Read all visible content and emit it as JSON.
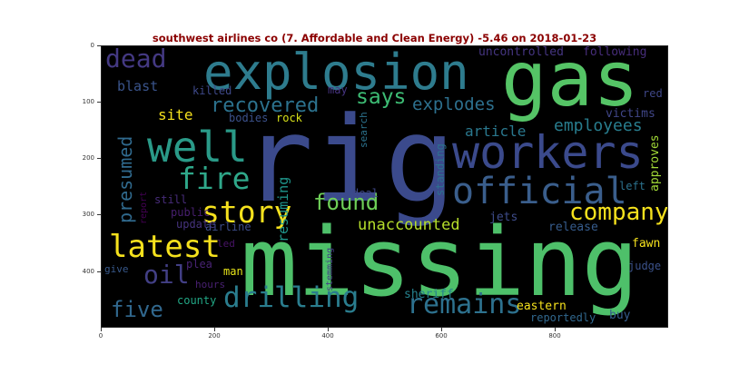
{
  "chart_data": {
    "type": "wordcloud",
    "title": "southwest airlines co (7. Affordable and Clean Energy) -5.46 on 2018-01-23",
    "x_ticks": [
      "0",
      "200",
      "400",
      "600",
      "800"
    ],
    "y_ticks": [
      "0",
      "100",
      "200",
      "300",
      "400"
    ],
    "xlim": [
      0,
      1000
    ],
    "ylim": [
      500,
      0
    ],
    "background": "#000000",
    "words": [
      {
        "text": "rig",
        "color": "#3b4a8c",
        "weight": 1.0
      },
      {
        "text": "missing",
        "color": "#4ec06a",
        "weight": 0.86
      },
      {
        "text": "gas",
        "color": "#55c466",
        "weight": 0.62
      },
      {
        "text": "explosion",
        "color": "#2e7c8e",
        "weight": 0.58
      },
      {
        "text": "workers",
        "color": "#3b4a8c",
        "weight": 0.46
      },
      {
        "text": "well",
        "color": "#2a9a88",
        "weight": 0.42
      },
      {
        "text": "official",
        "color": "#3a5e8c",
        "weight": 0.4
      },
      {
        "text": "latest",
        "color": "#f5e11d",
        "weight": 0.34
      },
      {
        "text": "story",
        "color": "#f5e11d",
        "weight": 0.33
      },
      {
        "text": "fire",
        "color": "#2fa88a",
        "weight": 0.33
      },
      {
        "text": "drilling",
        "color": "#2a7d8e",
        "weight": 0.32
      },
      {
        "text": "remains",
        "color": "#2d718e",
        "weight": 0.3
      },
      {
        "text": "dead",
        "color": "#443983",
        "weight": 0.28
      },
      {
        "text": "company",
        "color": "#f5e11d",
        "weight": 0.28
      },
      {
        "text": "oil",
        "color": "#423f85",
        "weight": 0.27
      },
      {
        "text": "found",
        "color": "#6ece58",
        "weight": 0.24
      },
      {
        "text": "five",
        "color": "#31688e",
        "weight": 0.23
      },
      {
        "text": "recovered",
        "color": "#2c728e",
        "weight": 0.22
      },
      {
        "text": "says",
        "color": "#3dbc74",
        "weight": 0.22
      },
      {
        "text": "presumed",
        "color": "#306a8e",
        "weight": 0.21
      },
      {
        "text": "explodes",
        "color": "#2d708e",
        "weight": 0.2
      },
      {
        "text": "employees",
        "color": "#287d8e",
        "weight": 0.19
      },
      {
        "text": "unaccounted",
        "color": "#b5de2b",
        "weight": 0.19
      },
      {
        "text": "article",
        "color": "#2a788e",
        "weight": 0.17
      },
      {
        "text": "resuming",
        "color": "#1f958b",
        "weight": 0.16
      },
      {
        "text": "site",
        "color": "#f5e11d",
        "weight": 0.16
      },
      {
        "text": "blast",
        "color": "#3a548c",
        "weight": 0.15
      },
      {
        "text": "uncontrolled",
        "color": "#453581",
        "weight": 0.14
      },
      {
        "text": "following",
        "color": "#472d7b",
        "weight": 0.14
      },
      {
        "text": "sheriff",
        "color": "#26828e",
        "weight": 0.13
      },
      {
        "text": "standing",
        "color": "#2c728e",
        "weight": 0.13
      },
      {
        "text": "victims",
        "color": "#404688",
        "weight": 0.13
      },
      {
        "text": "approves",
        "color": "#a2da37",
        "weight": 0.13
      },
      {
        "text": "jets",
        "color": "#3e4c8a",
        "weight": 0.12
      },
      {
        "text": "release",
        "color": "#365c8d",
        "weight": 0.12
      },
      {
        "text": "fawn",
        "color": "#f5e11d",
        "weight": 0.12
      },
      {
        "text": "eastern",
        "color": "#f5e11d",
        "weight": 0.12
      },
      {
        "text": "reportedly",
        "color": "#31688e",
        "weight": 0.12
      },
      {
        "text": "buy",
        "color": "#365c8d",
        "weight": 0.12
      },
      {
        "text": "killed",
        "color": "#3e4989",
        "weight": 0.11
      },
      {
        "text": "may",
        "color": "#463480",
        "weight": 0.11
      },
      {
        "text": "red",
        "color": "#3f4788",
        "weight": 0.11
      },
      {
        "text": "bodies",
        "color": "#3b518b",
        "weight": 0.11
      },
      {
        "text": "rock",
        "color": "#d8e219",
        "weight": 0.11
      },
      {
        "text": "search",
        "color": "#2c738e",
        "weight": 0.11
      },
      {
        "text": "deal",
        "color": "#3f4889",
        "weight": 0.11
      },
      {
        "text": "left",
        "color": "#2c728e",
        "weight": 0.11
      },
      {
        "text": "judge",
        "color": "#3b528b",
        "weight": 0.11
      },
      {
        "text": "county",
        "color": "#22a785",
        "weight": 0.11
      },
      {
        "text": "still",
        "color": "#472c7a",
        "weight": 0.11
      },
      {
        "text": "public",
        "color": "#481f70",
        "weight": 0.11
      },
      {
        "text": "update",
        "color": "#46337e",
        "weight": 0.11
      },
      {
        "text": "airline",
        "color": "#3d4d8a",
        "weight": 0.11
      },
      {
        "text": "plea",
        "color": "#482374",
        "weight": 0.11
      },
      {
        "text": "led",
        "color": "#481467",
        "weight": 0.1
      },
      {
        "text": "give",
        "color": "#38598c",
        "weight": 0.1
      },
      {
        "text": "man",
        "color": "#e7e419",
        "weight": 0.1
      },
      {
        "text": "hours",
        "color": "#482071",
        "weight": 0.1
      },
      {
        "text": "report",
        "color": "#440154",
        "weight": 0.1
      },
      {
        "text": "stemming",
        "color": "#433e85",
        "weight": 0.1
      }
    ]
  }
}
